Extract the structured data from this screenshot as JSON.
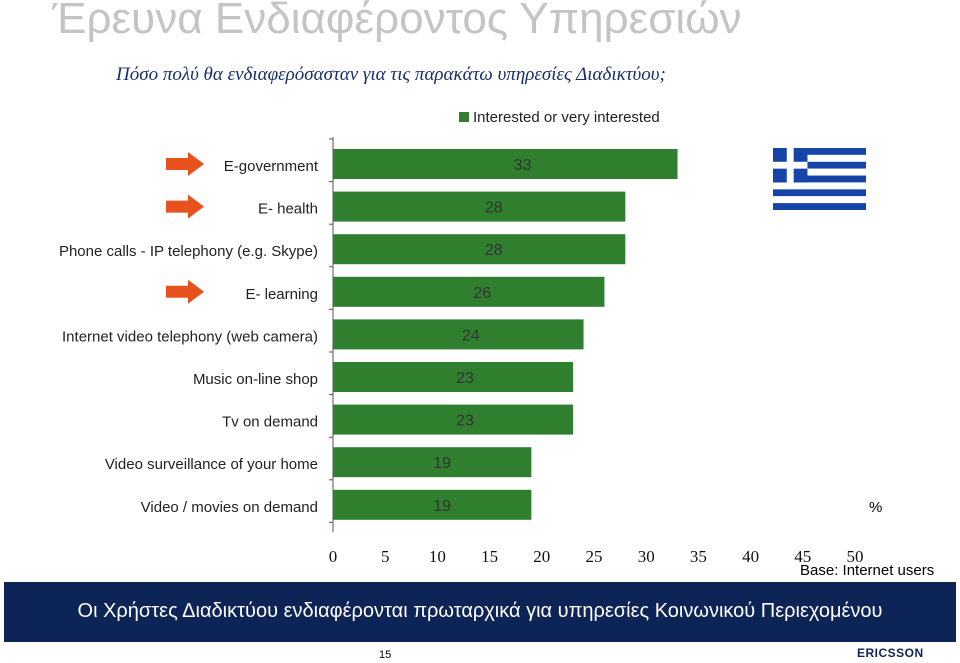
{
  "title": "Έρευνα Ενδιαφέροντος Υπηρεσιών",
  "subtitle": "Πόσο πολύ θα ενδιαφερόσασταν για τις παρακάτω υπηρεσίες Διαδικτύου;",
  "footer": "Οι Χρήστες Διαδικτύου ενδιαφέρονται πρωταρχικά για υπηρεσίες Κοινωνικού Περιεχομένου",
  "page_number": "15",
  "logo_text": "ERICSSON",
  "percent_sign": "%",
  "base_note": "Base: Internet users",
  "colors": {
    "bar": "#2f7f2f",
    "arrow": "#e8521f",
    "footer": "#0d2457",
    "flag_blue": "#1744a8"
  },
  "chart_data": {
    "type": "bar",
    "orientation": "horizontal",
    "legend": "Interested or very interested",
    "legend_position": "top",
    "categories": [
      "E-government",
      "E- health",
      "Phone calls - IP telephony (e.g. Skype)",
      "E- learning",
      "Internet video telephony (web camera)",
      "Music on-line shop",
      "Tv on demand",
      "Video surveillance of your home",
      "Video / movies on demand"
    ],
    "values": [
      33,
      28,
      28,
      26,
      24,
      23,
      23,
      19,
      19
    ],
    "highlighted": [
      true,
      true,
      false,
      true,
      false,
      false,
      false,
      false,
      false
    ],
    "xlim": [
      0,
      50
    ],
    "xticks": [
      0,
      5,
      10,
      15,
      20,
      25,
      30,
      35,
      40,
      45,
      50
    ],
    "grid": false
  }
}
